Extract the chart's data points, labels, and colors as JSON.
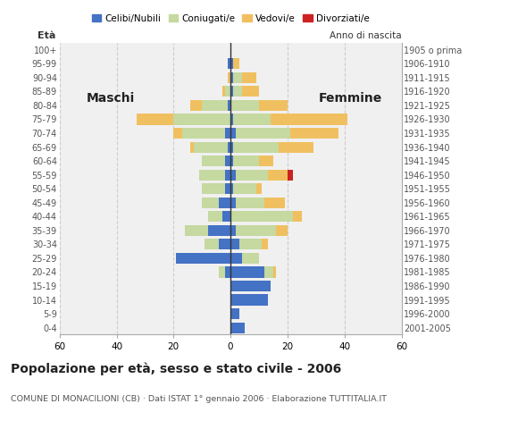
{
  "age_groups": [
    "0-4",
    "5-9",
    "10-14",
    "15-19",
    "20-24",
    "25-29",
    "30-34",
    "35-39",
    "40-44",
    "45-49",
    "50-54",
    "55-59",
    "60-64",
    "65-69",
    "70-74",
    "75-79",
    "80-84",
    "85-89",
    "90-94",
    "95-99",
    "100+"
  ],
  "birth_years": [
    "2001-2005",
    "1996-2000",
    "1991-1995",
    "1986-1990",
    "1981-1985",
    "1976-1980",
    "1971-1975",
    "1966-1970",
    "1961-1965",
    "1956-1960",
    "1951-1955",
    "1946-1950",
    "1941-1945",
    "1936-1940",
    "1931-1935",
    "1926-1930",
    "1921-1925",
    "1916-1920",
    "1911-1915",
    "1906-1910",
    "1905 o prima"
  ],
  "males": {
    "celibe": [
      0,
      0,
      0,
      0,
      2,
      19,
      4,
      8,
      3,
      4,
      2,
      2,
      2,
      1,
      2,
      0,
      1,
      0,
      0,
      1,
      0
    ],
    "coniugato": [
      0,
      0,
      0,
      0,
      2,
      0,
      5,
      8,
      5,
      6,
      8,
      9,
      8,
      12,
      15,
      20,
      9,
      2,
      0,
      0,
      0
    ],
    "vedovo": [
      0,
      0,
      0,
      0,
      0,
      0,
      0,
      0,
      0,
      0,
      0,
      0,
      0,
      1,
      3,
      13,
      4,
      1,
      1,
      0,
      0
    ],
    "divorziato": [
      0,
      0,
      0,
      0,
      0,
      0,
      0,
      0,
      0,
      0,
      0,
      0,
      0,
      0,
      0,
      0,
      0,
      0,
      0,
      0,
      0
    ]
  },
  "females": {
    "nubile": [
      5,
      3,
      13,
      14,
      12,
      4,
      3,
      2,
      0,
      2,
      1,
      2,
      1,
      1,
      2,
      1,
      0,
      1,
      1,
      1,
      0
    ],
    "coniugata": [
      0,
      0,
      0,
      0,
      3,
      6,
      8,
      14,
      22,
      10,
      8,
      11,
      9,
      16,
      19,
      13,
      10,
      3,
      3,
      0,
      0
    ],
    "vedova": [
      0,
      0,
      0,
      0,
      1,
      0,
      2,
      4,
      3,
      7,
      2,
      7,
      5,
      12,
      17,
      27,
      10,
      6,
      5,
      2,
      0
    ],
    "divorziata": [
      0,
      0,
      0,
      0,
      0,
      0,
      0,
      0,
      0,
      0,
      0,
      2,
      0,
      0,
      0,
      0,
      0,
      0,
      0,
      0,
      0
    ]
  },
  "color_celibe": "#4472c4",
  "color_coniugato": "#c5d9a0",
  "color_vedovo": "#f0c060",
  "color_divorziato": "#cc2222",
  "title": "Popolazione per età, sesso e stato civile - 2006",
  "subtitle": "COMUNE DI MONACILIONI (CB) · Dati ISTAT 1° gennaio 2006 · Elaborazione TUTTITALIA.IT",
  "ylabel_age": "Età",
  "ylabel_birth": "Anno di nascita",
  "label_maschi": "Maschi",
  "label_femmine": "Femmine",
  "xlim": 60,
  "bg_color": "#ffffff",
  "plot_bg": "#f0f0f0",
  "legend_labels": [
    "Celibi/Nubili",
    "Coniugati/e",
    "Vedovi/e",
    "Divorziati/e"
  ]
}
